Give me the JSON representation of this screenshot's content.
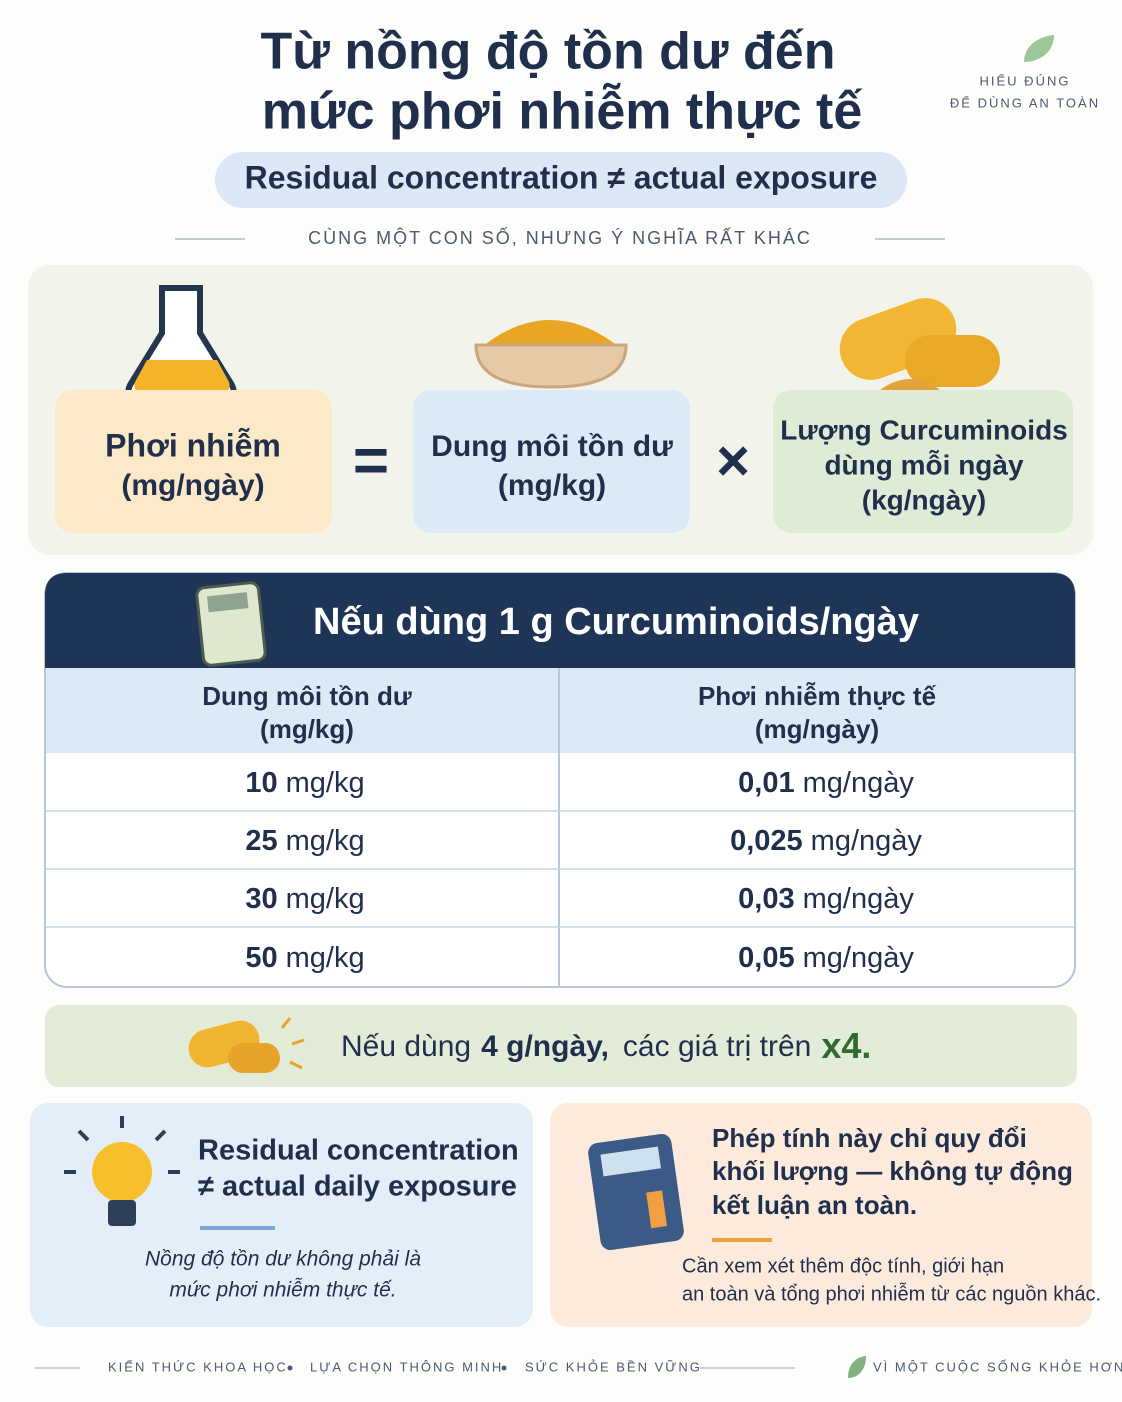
{
  "header": {
    "title": [
      "Từ nồng độ tồn dư đến",
      "mức phơi nhiễm thực tế"
    ],
    "subtitle": "Residual concentration ≠ actual exposure",
    "tagline": "CÙNG MỘT CON SỐ, NHƯNG Ý NGHĨA RẤT KHÁC",
    "badge": [
      "HIỂU ĐÚNG",
      "ĐỂ DÙNG AN TOÀN"
    ]
  },
  "formula": {
    "terms": [
      {
        "lines": [
          "Phơi nhiễm",
          "(mg/ngày)"
        ]
      },
      {
        "lines": [
          "Dung môi tồn dư",
          "(mg/kg)"
        ]
      },
      {
        "lines": [
          "Lượng Curcuminoids",
          "dùng mỗi ngày",
          "(kg/ngày)"
        ]
      }
    ],
    "operators": [
      "=",
      "×"
    ]
  },
  "table": {
    "title": "Nếu dùng 1 g Curcuminoids/ngày",
    "columns": [
      {
        "label": "Dung môi tồn dư",
        "unit": "(mg/kg)"
      },
      {
        "label": "Phơi nhiễm thực tế",
        "unit": "(mg/ngày)"
      }
    ],
    "rows": [
      [
        {
          "value": "10",
          "unit": "mg/kg"
        },
        {
          "value": "0,01",
          "unit": "mg/ngày"
        }
      ],
      [
        {
          "value": "25",
          "unit": "mg/kg"
        },
        {
          "value": "0,025",
          "unit": "mg/ngày"
        }
      ],
      [
        {
          "value": "30",
          "unit": "mg/kg"
        },
        {
          "value": "0,03",
          "unit": "mg/ngày"
        }
      ],
      [
        {
          "value": "50",
          "unit": "mg/kg"
        },
        {
          "value": "0,05",
          "unit": "mg/ngày"
        }
      ]
    ]
  },
  "note": {
    "parts": [
      "Nếu dùng",
      "4 g/ngày,",
      "các giá trị trên",
      "x4."
    ]
  },
  "cards": [
    {
      "title": [
        "Residual concentration",
        "≠ actual daily exposure"
      ],
      "text": [
        "Nồng độ tồn dư không phải là",
        "mức phơi nhiễm thực tế."
      ]
    },
    {
      "title": [
        "Phép tính này chỉ quy đổi",
        "khối lượng — không tự động",
        "kết luận an toàn."
      ],
      "text": [
        "Cần xem xét thêm độc tính, giới hạn",
        "an toàn và tổng phơi nhiễm từ các nguồn khác."
      ]
    }
  ],
  "footer": {
    "items": [
      "KIẾN THỨC KHOA HỌC",
      "LỰA CHỌN THÔNG MINH",
      "SỨC KHỎE BỀN VỮNG"
    ],
    "slogan": "VÌ MỘT CUỘC SỐNG KHỎE HƠN"
  }
}
